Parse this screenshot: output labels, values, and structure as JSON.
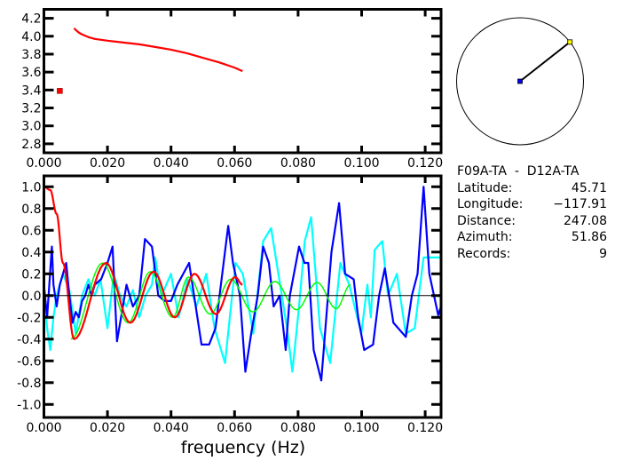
{
  "chart_data": [
    {
      "type": "scatter",
      "xlim": [
        0,
        0.125
      ],
      "ylim": [
        2.7,
        4.3
      ],
      "x_ticks": [
        "0.000",
        "0.020",
        "0.040",
        "0.060",
        "0.080",
        "0.100",
        "0.120"
      ],
      "y_ticks": [
        "2.8",
        "3.0",
        "3.2",
        "3.4",
        "3.6",
        "3.8",
        "4.0",
        "4.2"
      ],
      "grid": false,
      "series": [
        {
          "style": "line",
          "color": "#ff0000",
          "x": [
            0.0095,
            0.01,
            0.011,
            0.012,
            0.014,
            0.016,
            0.02,
            0.025,
            0.03,
            0.035,
            0.04,
            0.045,
            0.05,
            0.055,
            0.06,
            0.0625
          ],
          "y": [
            4.09,
            4.07,
            4.04,
            4.02,
            3.99,
            3.97,
            3.95,
            3.93,
            3.91,
            3.88,
            3.85,
            3.81,
            3.76,
            3.71,
            3.65,
            3.61
          ]
        },
        {
          "style": "marker",
          "color": "#ff0000",
          "x": [
            0.005
          ],
          "y": [
            3.39
          ]
        }
      ]
    },
    {
      "type": "line",
      "xlabel": "frequency (Hz)",
      "xlim": [
        0,
        0.125
      ],
      "ylim": [
        -1.12,
        1.1
      ],
      "x_ticks": [
        "0.000",
        "0.020",
        "0.040",
        "0.060",
        "0.080",
        "0.100",
        "0.120"
      ],
      "y_ticks": [
        "-1.0",
        "-0.8",
        "-0.6",
        "-0.4",
        "-0.2",
        "0.0",
        "0.2",
        "0.4",
        "0.6",
        "0.8",
        "1.0"
      ],
      "zero_line": true,
      "grid": false,
      "series": [
        {
          "color": "#00ffff",
          "smooth": false,
          "x": [
            0,
            0.001,
            0.002,
            0.003,
            0.004,
            0.006,
            0.008,
            0.01,
            0.012,
            0.014,
            0.016,
            0.0178,
            0.02,
            0.022,
            0.024,
            0.026,
            0.028,
            0.03,
            0.032,
            0.034,
            0.035,
            0.037,
            0.04,
            0.0424,
            0.0452,
            0.048,
            0.0511,
            0.0537,
            0.057,
            0.0603,
            0.0626,
            0.0659,
            0.069,
            0.0715,
            0.0738,
            0.0765,
            0.0782,
            0.0803,
            0.0821,
            0.0841,
            0.0869,
            0.0901,
            0.0933,
            0.0961,
            0.0999,
            0.1018,
            0.1029,
            0.1041,
            0.1065,
            0.1083,
            0.1111,
            0.1139,
            0.1167,
            0.1195,
            0.1223,
            0.1246
          ],
          "y": [
            0.1,
            -0.3,
            -0.5,
            -0.2,
            0.0,
            0.2,
            0.05,
            -0.35,
            0.0,
            0.15,
            0.0,
            0.15,
            -0.3,
            0.2,
            0.0,
            -0.1,
            0.05,
            -0.2,
            0.0,
            0.1,
            0.35,
            0.0,
            0.2,
            -0.2,
            0.15,
            -0.1,
            0.2,
            -0.3,
            -0.62,
            0.3,
            0.2,
            -0.35,
            0.5,
            0.62,
            0.2,
            -0.3,
            -0.7,
            -0.1,
            0.5,
            0.72,
            -0.3,
            -0.62,
            0.3,
            0.1,
            -0.35,
            0.1,
            -0.2,
            0.42,
            0.5,
            0.0,
            0.2,
            -0.35,
            -0.3,
            0.35,
            0.35,
            0.35
          ]
        },
        {
          "color": "#0000ff",
          "smooth": false,
          "x": [
            0,
            0.001,
            0.0025,
            0.003,
            0.004,
            0.005,
            0.007,
            0.008,
            0.009,
            0.01,
            0.011,
            0.012,
            0.013,
            0.014,
            0.015,
            0.016,
            0.018,
            0.02,
            0.0216,
            0.023,
            0.026,
            0.028,
            0.03,
            0.0318,
            0.034,
            0.036,
            0.038,
            0.04,
            0.042,
            0.0457,
            0.0496,
            0.052,
            0.054,
            0.058,
            0.0595,
            0.0617,
            0.0634,
            0.0655,
            0.0673,
            0.069,
            0.0708,
            0.0723,
            0.0742,
            0.0761,
            0.0774,
            0.0803,
            0.082,
            0.0832,
            0.0849,
            0.0873,
            0.0905,
            0.0929,
            0.0948,
            0.0975,
            0.0989,
            0.1008,
            0.1036,
            0.1055,
            0.1073,
            0.11,
            0.1139,
            0.1158,
            0.1176,
            0.1195,
            0.1213,
            0.1241,
            0.125
          ],
          "y": [
            0.1,
            -0.2,
            0.45,
            0.1,
            -0.1,
            0.1,
            0.3,
            0.0,
            -0.25,
            -0.15,
            -0.2,
            -0.05,
            0.0,
            0.1,
            0.0,
            0.1,
            0.15,
            0.3,
            0.45,
            -0.42,
            0.1,
            -0.1,
            0.0,
            0.52,
            0.45,
            0.0,
            -0.05,
            -0.05,
            0.1,
            0.3,
            -0.45,
            -0.45,
            -0.3,
            0.64,
            0.3,
            0.0,
            -0.7,
            -0.3,
            0.0,
            0.45,
            0.3,
            -0.1,
            0.0,
            -0.5,
            0.0,
            0.45,
            0.3,
            0.3,
            -0.5,
            -0.78,
            0.4,
            0.85,
            0.2,
            0.15,
            -0.2,
            -0.5,
            -0.45,
            0.0,
            0.25,
            -0.25,
            -0.38,
            0.0,
            0.2,
            1.0,
            0.2,
            -0.18,
            -0.1
          ]
        },
        {
          "color": "#00ff00",
          "smooth": true,
          "x": [
            0.0085,
            0.0185,
            0.0265,
            0.0335,
            0.0405,
            0.0455,
            0.0523,
            0.0588,
            0.0658,
            0.0727,
            0.0795,
            0.086,
            0.092,
            0.0965
          ],
          "y": [
            -0.4,
            0.3,
            -0.25,
            0.22,
            -0.2,
            0.17,
            -0.17,
            0.15,
            -0.15,
            0.13,
            -0.13,
            0.12,
            -0.12,
            0.1
          ]
        },
        {
          "color": "#ff0000",
          "smooth": true,
          "x": [
            0,
            0.002,
            0.004,
            0.006,
            0.0095,
            0.0195,
            0.0272,
            0.0345,
            0.0412,
            0.0474,
            0.0541,
            0.0602,
            0.0625
          ],
          "y": [
            1.0,
            0.97,
            0.75,
            0.3,
            -0.4,
            0.3,
            -0.25,
            0.22,
            -0.2,
            0.2,
            -0.17,
            0.17,
            0.1
          ]
        }
      ]
    }
  ],
  "map": {
    "azimuth_deg": 51.86,
    "center_color": "#0000ff",
    "end_color": "#ffff00"
  },
  "info": {
    "title": "F09A-TA  -  D12A-TA",
    "rows": [
      {
        "label": "Latitude:",
        "value": "45.71"
      },
      {
        "label": "Longitude:",
        "value": "−117.91"
      },
      {
        "label": "Distance:",
        "value": "247.08"
      },
      {
        "label": "Azimuth:",
        "value": "51.86"
      },
      {
        "label": "Records:",
        "value": "9"
      }
    ]
  }
}
